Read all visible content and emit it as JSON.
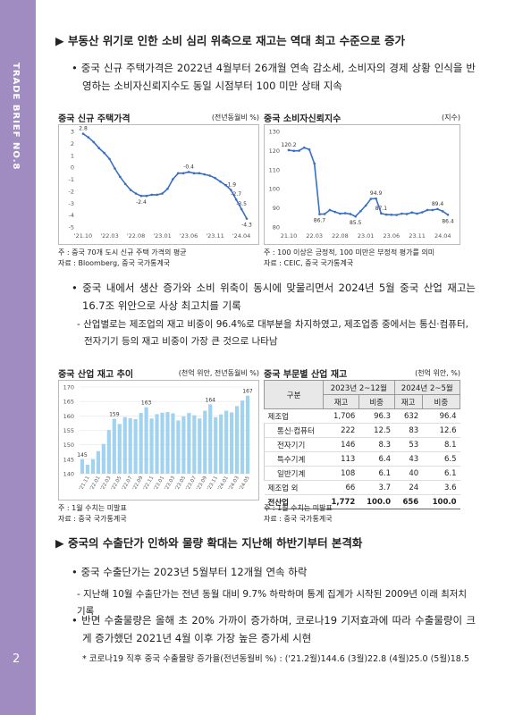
{
  "sidebar": {
    "brand": "TRADE BRIEF NO.8",
    "page": "2"
  },
  "section1": {
    "heading": "▶ 부동산 위기로 인한 소비 심리 위축으로 재고는 역대 최고 수준으로 증가",
    "bullet1": "• 중국 신규 주택가격은 2022년 4월부터 26개월 연속 감소세, 소비자의 경제 상황 인식을 반영하는 소비자신뢰지수도 동일 시점부터 100 미만 상태 지속",
    "bullet2": "• 중국 내에서 생산 증가와 소비 위축이 동시에 맞물리면서 2024년 5월 중국 산업 재고는 16.7조 위안으로 사상 최고치를 기록",
    "sub1": "- 산업별로는 제조업의 재고 비중이 96.4%로 대부분을 차지하였고, 제조업종 중에서는 통신·컴퓨터, 전자기기 등의 재고 비중이 가장 큰 것으로 나타남"
  },
  "chart_data": [
    {
      "type": "line",
      "title": "중국 신규 주택가격",
      "unit": "(전년동월비 %)",
      "categories": [
        "'21.10",
        null,
        null,
        null,
        null,
        "'22.03",
        null,
        null,
        null,
        null,
        "'22.08",
        null,
        null,
        null,
        null,
        "'23.01",
        null,
        null,
        null,
        null,
        "'23.06",
        null,
        null,
        null,
        null,
        "'23.11",
        null,
        null,
        null,
        null,
        "'24.04",
        null
      ],
      "values": [
        2.8,
        2.5,
        2.1,
        1.6,
        1.2,
        0.7,
        -0.1,
        -0.8,
        -1.4,
        -1.9,
        -2.2,
        -2.4,
        -2.4,
        -2.3,
        -2.3,
        -2.2,
        -1.8,
        -1.0,
        -0.5,
        -0.5,
        -0.4,
        -0.5,
        -0.5,
        -0.6,
        -0.7,
        -0.9,
        -1.2,
        -1.5,
        -1.9,
        -2.7,
        -3.5,
        -4.3
      ],
      "labeled_points": [
        0,
        11,
        20,
        28,
        29,
        30,
        31
      ],
      "color": "#3a6fc4",
      "ylim": [
        -5,
        3
      ],
      "yticks": [
        3,
        2,
        1,
        0,
        -1,
        -2,
        -3,
        -4,
        -5
      ],
      "grid": false,
      "notes": [
        "주 : 중국 70개 도시 신규 주택 가격의 평균",
        "자료 : Bloomberg, 중국 국가통계국"
      ]
    },
    {
      "type": "line",
      "title": "중국 소비자신뢰지수",
      "unit": "(지수)",
      "categories": [
        "21.10",
        null,
        null,
        null,
        null,
        "22.03",
        null,
        null,
        null,
        null,
        "22.08",
        null,
        null,
        null,
        null,
        "23.01",
        null,
        null,
        null,
        null,
        "23.06",
        null,
        null,
        null,
        null,
        "23.11",
        null,
        null,
        null,
        null,
        "24.04",
        null
      ],
      "values": [
        120.2,
        119.8,
        119.9,
        121.5,
        120.5,
        113.2,
        86.7,
        86.8,
        88.9,
        87.9,
        87.0,
        87.2,
        86.8,
        85.5,
        88.3,
        91.2,
        94.7,
        94.9,
        87.1,
        86.5,
        86.4,
        86.3,
        87.0,
        86.8,
        87.6,
        87.0,
        87.7,
        88.9,
        88.9,
        89.4,
        88.2,
        86.4
      ],
      "labeled_points": [
        0,
        6,
        13,
        17,
        18,
        29,
        31
      ],
      "color": "#3a6fc4",
      "ylim": [
        80,
        130
      ],
      "yticks": [
        130,
        120,
        110,
        100,
        90,
        80
      ],
      "grid": false,
      "notes": [
        "주 : 100 이상은 긍정적, 100 미만은 부정적 평가를 의미",
        "자료 : CEIC, 중국 국가통계국"
      ]
    },
    {
      "type": "bar",
      "title": "중국 산업 재고 추이",
      "unit": "(천억 위안, 전년동월비 %)",
      "categories": [
        null,
        "'21.11",
        null,
        "'22.01",
        null,
        "'22.03",
        null,
        "'22.05",
        null,
        "'22.07",
        null,
        "'22.09",
        null,
        "'22.11",
        null,
        "'23.01",
        null,
        "'23.03",
        null,
        "'23.05",
        null,
        "'23.07",
        null,
        "'23.09",
        null,
        "'23.11",
        null,
        "'24.01",
        null,
        "'24.03",
        null,
        "'24.05"
      ],
      "values": [
        145,
        143.1,
        145.0,
        147.8,
        150.3,
        155.1,
        159,
        157.2,
        159.6,
        159.2,
        158.9,
        161.0,
        163,
        159.1,
        160.6,
        161.1,
        161.3,
        160.9,
        158.4,
        159.8,
        161.0,
        160.2,
        159.1,
        161.8,
        164,
        159.5,
        160.5,
        161.8,
        161.2,
        163.4,
        165.3,
        167
      ],
      "labeled_points": [
        0,
        6,
        12,
        24,
        31
      ],
      "color": "#9fd3f0",
      "ylim": [
        140,
        170
      ],
      "yticks": [
        170,
        165,
        160,
        155,
        150,
        145,
        140
      ],
      "grid": true,
      "notes": [
        "주 : 1월 수치는 미발표",
        "자료 : 중국 국가통계국"
      ]
    }
  ],
  "table": {
    "title": "중국 부문별 산업 재고",
    "unit": "(천억 위안, %)",
    "header": {
      "group": [
        "구분",
        "2023년 2~12월",
        "2024년 2~5월"
      ],
      "sub": [
        "재고",
        "비중",
        "재고",
        "비중"
      ]
    },
    "rows": [
      [
        "제조업",
        "1,706",
        "96.3",
        "632",
        "96.4"
      ],
      [
        "통신·컴퓨터",
        "222",
        "12.5",
        "83",
        "12.6"
      ],
      [
        "전자기기",
        "146",
        "8.3",
        "53",
        "8.1"
      ],
      [
        "특수기계",
        "113",
        "6.4",
        "43",
        "6.5"
      ],
      [
        "일반기계",
        "108",
        "6.1",
        "40",
        "6.1"
      ],
      [
        "제조업 외",
        "66",
        "3.7",
        "24",
        "3.6"
      ],
      [
        "전산업",
        "1,772",
        "100.0",
        "656",
        "100.0"
      ]
    ],
    "subrows": [
      1,
      2,
      3,
      4
    ],
    "notes": [
      "주 : 1월 수치는 미발표",
      "자료 : 중국 국가통계국"
    ]
  },
  "section2": {
    "heading": "▶ 중국의 수출단가 인하와 물량 확대는 지난해 하반기부터 본격화",
    "bullet1": "• 중국 수출단가는 2023년 5월부터 12개월 연속 하락",
    "sub1": "- 지난해 10월 수출단가는 전년 동월 대비 9.7% 하락하며 통계 집계가 시작된 2009년 이래 최저치 기록",
    "bullet2": "• 반면 수출물량은 올해 초 20% 가까이 증가하며, 코로나19 기저효과에 따라 수출물량이 크게 증가했던 2021년 4월 이후 가장 높은 증가세 시현",
    "note": "* 코로나19 직후 중국 수출물량 증가율(전년동월비 %) : ('21.2월)144.6 (3월)22.8 (4월)25.0 (5월)18.5"
  }
}
